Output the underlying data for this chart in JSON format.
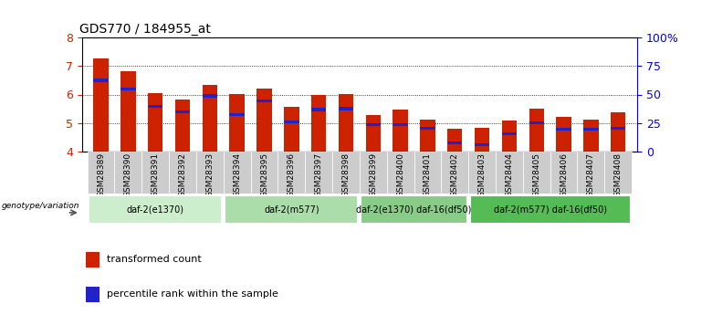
{
  "title": "GDS770 / 184955_at",
  "samples": [
    "GSM28389",
    "GSM28390",
    "GSM28391",
    "GSM28392",
    "GSM28393",
    "GSM28394",
    "GSM28395",
    "GSM28396",
    "GSM28397",
    "GSM28398",
    "GSM28399",
    "GSM28400",
    "GSM28401",
    "GSM28402",
    "GSM28403",
    "GSM28404",
    "GSM28405",
    "GSM28406",
    "GSM28407",
    "GSM28408"
  ],
  "bar_values": [
    7.28,
    6.82,
    6.05,
    5.83,
    6.35,
    6.0,
    6.21,
    5.58,
    5.98,
    6.02,
    5.28,
    5.47,
    5.1,
    4.78,
    4.82,
    5.07,
    5.49,
    5.22,
    5.13,
    5.38
  ],
  "blue_positions": [
    6.5,
    6.2,
    5.58,
    5.38,
    5.95,
    5.28,
    5.78,
    5.02,
    5.47,
    5.5,
    4.95,
    4.95,
    4.8,
    4.28,
    4.23,
    4.62,
    5.01,
    4.78,
    4.77,
    4.8
  ],
  "ymin": 4.0,
  "ymax": 8.0,
  "yticks": [
    4,
    5,
    6,
    7,
    8
  ],
  "bar_color": "#cc2200",
  "blue_color": "#2222cc",
  "bar_width": 0.55,
  "groups": [
    {
      "label": "daf-2(e1370)",
      "start": 0,
      "end": 4,
      "color": "#cceecc"
    },
    {
      "label": "daf-2(m577)",
      "start": 5,
      "end": 9,
      "color": "#aaddaa"
    },
    {
      "label": "daf-2(e1370) daf-16(df50)",
      "start": 10,
      "end": 13,
      "color": "#88cc88"
    },
    {
      "label": "daf-2(m577) daf-16(df50)",
      "start": 14,
      "end": 19,
      "color": "#55bb55"
    }
  ],
  "genotype_label": "genotype/variation",
  "legend_items": [
    {
      "label": "transformed count",
      "color": "#cc2200"
    },
    {
      "label": "percentile rank within the sample",
      "color": "#2222cc"
    }
  ],
  "tick_label_color": "#cc2200",
  "right_tick_color": "#0000ee",
  "right_yticklabels": [
    "0",
    "25",
    "50",
    "75",
    "100%"
  ]
}
